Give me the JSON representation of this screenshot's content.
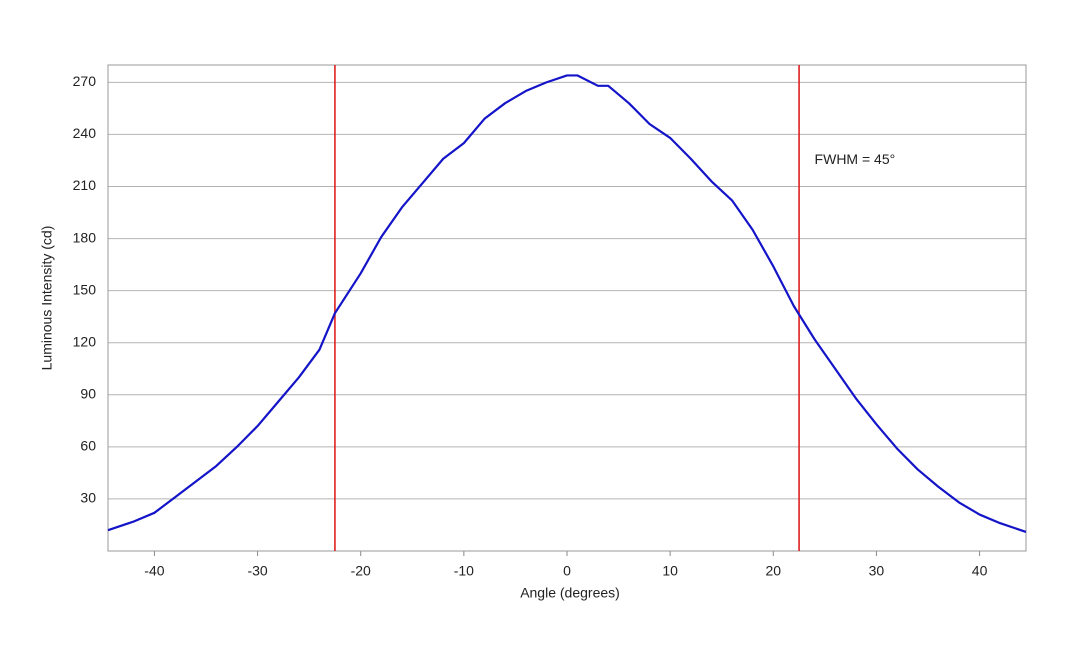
{
  "chart_data": {
    "type": "line",
    "x_label": "Angle (degrees)",
    "y_label": "Luminous Intensity (cd)",
    "x": [
      -44.5,
      -42,
      -40,
      -38,
      -36,
      -34,
      -32,
      -30,
      -28,
      -26,
      -24,
      -22.5,
      -20,
      -18,
      -16,
      -14,
      -12,
      -10,
      -8,
      -6,
      -4,
      -2,
      0,
      1,
      3,
      4,
      6,
      8,
      10,
      12,
      14,
      16,
      18,
      20,
      22,
      24,
      26,
      28,
      30,
      32,
      34,
      36,
      38,
      40,
      42,
      44.5
    ],
    "series": [
      {
        "name": "Luminous Intensity",
        "color": "#1414c8",
        "values": [
          12,
          17,
          22,
          31,
          40,
          49,
          60,
          72,
          86,
          100,
          116,
          137,
          160,
          181,
          198,
          212,
          226,
          235,
          249,
          258,
          265,
          270,
          274,
          274,
          268,
          268,
          258,
          246,
          238,
          226,
          213,
          202,
          185,
          164,
          141,
          122,
          105,
          88,
          73,
          59,
          47,
          37,
          28,
          21,
          16,
          11
        ]
      }
    ],
    "vlines": [
      -22.5,
      22.5
    ],
    "vline_color": "#e02020",
    "annotation": "FWHM = 45°",
    "annotation_x": 24,
    "annotation_y": 225,
    "xlim": [
      -44.5,
      44.5
    ],
    "ylim": [
      0,
      280
    ],
    "xticks": [
      -40,
      -30,
      -20,
      -10,
      0,
      10,
      20,
      30,
      40
    ],
    "yticks": [
      30,
      60,
      90,
      120,
      150,
      180,
      210,
      240,
      270
    ],
    "grid": true
  }
}
